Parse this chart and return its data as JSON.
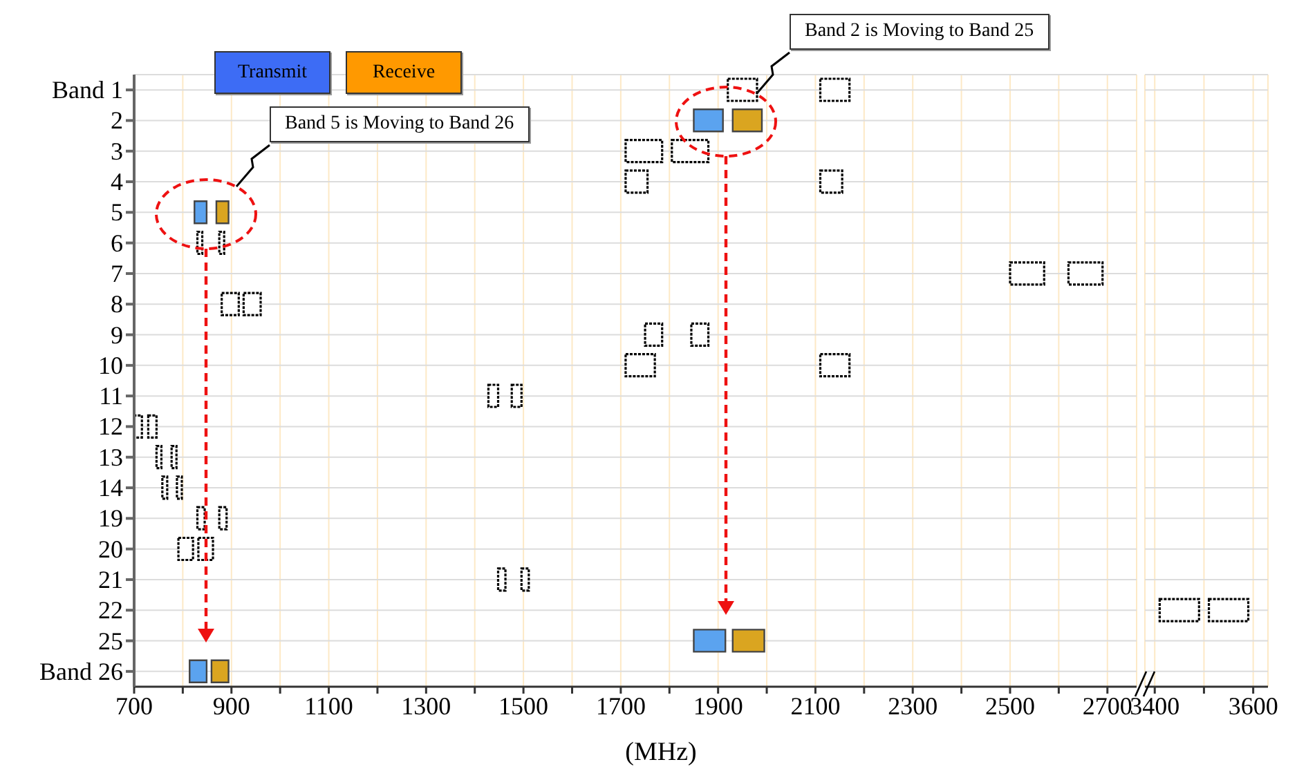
{
  "chart_data": [
    {
      "type": "bar",
      "orientation": "horizontal",
      "xlabel": "(MHz)",
      "legend": "top left",
      "grid": true,
      "categories": [
        "Band 1",
        "2",
        "3",
        "4",
        "5",
        "6",
        "7",
        "8",
        "9",
        "10",
        "11",
        "12",
        "13",
        "14",
        "19",
        "20",
        "21",
        "22",
        "25",
        "Band 26"
      ],
      "xlim": [
        700,
        2760
      ],
      "xticks": [
        700,
        {
          "value": 800,
          "label": null
        },
        900,
        {
          "value": 1000,
          "label": null
        },
        1100,
        {
          "value": 1200,
          "label": null
        },
        1300,
        {
          "value": 1400,
          "label": null
        },
        1500,
        {
          "value": 1600,
          "label": null
        },
        1700,
        {
          "value": 1800,
          "label": null
        },
        1900,
        {
          "value": 2000,
          "label": null
        },
        2100,
        {
          "value": 2200,
          "label": null
        },
        2300,
        {
          "value": 2400,
          "label": null
        },
        2500,
        {
          "value": 2600,
          "label": null
        },
        2700
      ],
      "series": [
        {
          "name": "Transmit",
          "color": "#3d6cf5",
          "colors": [
            "#ffffff",
            "#5ba3ef",
            "#ffffff",
            "#ffffff",
            "#5ba3ef",
            "#ffffff",
            "#ffffff",
            "#ffffff",
            "#ffffff",
            "#ffffff",
            "#ffffff",
            "#ffffff",
            "#ffffff",
            "#ffffff",
            "#ffffff",
            "#ffffff",
            "#ffffff",
            "#ffffff",
            "#5ba3ef",
            "#5ba3ef"
          ],
          "base": [
            1920,
            1850,
            1710,
            1710,
            824,
            830,
            2500,
            880,
            1750,
            1710,
            1428,
            699,
            777,
            788,
            830,
            832,
            1448,
            null,
            1850,
            814
          ],
          "values": [
            60,
            60,
            75,
            45,
            25,
            10,
            70,
            35,
            35,
            60,
            20,
            17,
            10,
            10,
            15,
            30,
            15,
            null,
            65,
            35
          ]
        },
        {
          "name": "Receive",
          "color": "#ff9900",
          "colors": [
            "#ffffff",
            "#daa520",
            "#ffffff",
            "#ffffff",
            "#daa520",
            "#ffffff",
            "#ffffff",
            "#ffffff",
            "#ffffff",
            "#ffffff",
            "#ffffff",
            "#ffffff",
            "#ffffff",
            "#ffffff",
            "#ffffff",
            "#ffffff",
            "#ffffff",
            "#ffffff",
            "#daa520",
            "#daa520"
          ],
          "base": [
            2110,
            1930,
            1805,
            2110,
            869,
            875,
            2620,
            925,
            1845,
            2110,
            1476,
            729,
            746,
            758,
            875,
            791,
            1496,
            null,
            1930,
            859
          ],
          "values": [
            60,
            60,
            75,
            45,
            25,
            10,
            70,
            35,
            35,
            60,
            20,
            17,
            10,
            10,
            15,
            30,
            15,
            null,
            65,
            35
          ]
        }
      ],
      "annotations": [
        "Band 5 is Moving to Band 26",
        "Band 2 is Moving to Band 25"
      ]
    },
    {
      "type": "bar",
      "orientation": "horizontal",
      "grid": true,
      "tick_labels": "x",
      "xlim": [
        3380,
        3630
      ],
      "xticks": [
        3400,
        {
          "value": 3500,
          "label": null
        },
        3600
      ],
      "series": [
        {
          "colors": [
            "#ffffff",
            "#ffffff",
            "#ffffff",
            "#ffffff",
            "#ffffff",
            "#ffffff",
            "#ffffff",
            "#ffffff",
            "#ffffff",
            "#ffffff",
            "#ffffff",
            "#ffffff",
            "#ffffff",
            "#ffffff",
            "#ffffff",
            "#ffffff",
            "#ffffff",
            "#ffffff",
            "#ffffff",
            "#ffffff"
          ],
          "base": [
            null,
            null,
            null,
            null,
            null,
            null,
            null,
            null,
            null,
            null,
            null,
            null,
            null,
            null,
            null,
            null,
            null,
            3410,
            null,
            null
          ],
          "values": [
            null,
            null,
            null,
            null,
            null,
            null,
            null,
            null,
            null,
            null,
            null,
            null,
            null,
            null,
            null,
            null,
            null,
            80,
            null,
            null
          ]
        },
        {
          "colors": [
            "#ffffff",
            "#ffffff",
            "#ffffff",
            "#ffffff",
            "#ffffff",
            "#ffffff",
            "#ffffff",
            "#ffffff",
            "#ffffff",
            "#ffffff",
            "#ffffff",
            "#ffffff",
            "#ffffff",
            "#ffffff",
            "#ffffff",
            "#ffffff",
            "#ffffff",
            "#ffffff",
            "#ffffff",
            "#ffffff"
          ],
          "base": [
            null,
            null,
            null,
            null,
            null,
            null,
            null,
            null,
            null,
            null,
            null,
            null,
            null,
            null,
            null,
            null,
            null,
            3510,
            null,
            null
          ],
          "values": [
            null,
            null,
            null,
            null,
            null,
            null,
            null,
            null,
            null,
            null,
            null,
            null,
            null,
            null,
            null,
            null,
            null,
            80,
            null,
            null
          ]
        }
      ]
    }
  ]
}
